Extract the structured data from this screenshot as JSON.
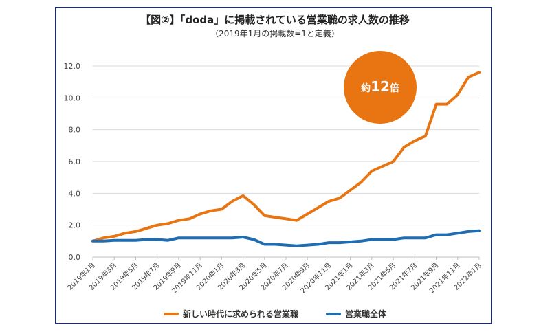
{
  "header": {
    "title": "【図②】「doda」に掲載されている営業職の求人数の推移",
    "subtitle": "（2019年1月の掲載数=1と定義）"
  },
  "badge": {
    "prefix": "約",
    "number": "12",
    "suffix": "倍",
    "color": "#e87511"
  },
  "chart_data": {
    "type": "line",
    "ylim": [
      0,
      12
    ],
    "yticks": [
      "0.0",
      "2.0",
      "4.0",
      "6.0",
      "8.0",
      "10.0",
      "12.0"
    ],
    "x": [
      "2019年1月",
      "2019年2月",
      "2019年3月",
      "2019年4月",
      "2019年5月",
      "2019年6月",
      "2019年7月",
      "2019年8月",
      "2019年9月",
      "2019年10月",
      "2019年11月",
      "2019年12月",
      "2020年1月",
      "2020年2月",
      "2020年3月",
      "2020年4月",
      "2020年5月",
      "2020年6月",
      "2020年7月",
      "2020年8月",
      "2020年9月",
      "2020年10月",
      "2020年11月",
      "2020年12月",
      "2021年1月",
      "2021年2月",
      "2021年3月",
      "2021年4月",
      "2021年5月",
      "2021年6月",
      "2021年7月",
      "2021年8月",
      "2021年9月",
      "2021年10月",
      "2021年11月",
      "2021年12月",
      "2022年1月"
    ],
    "xtick_labels": [
      "2019年1月",
      "2019年3月",
      "2019年5月",
      "2019年7月",
      "2019年9月",
      "2019年11月",
      "2020年1月",
      "2020年3月",
      "2020年5月",
      "2020年7月",
      "2020年9月",
      "2020年11月",
      "2021年1月",
      "2021年3月",
      "2021年5月",
      "2021年7月",
      "2021年9月",
      "2021年11月",
      "2022年1月"
    ],
    "series": [
      {
        "name": "新しい時代に求められる営業職",
        "color": "#e87511",
        "values": [
          1.0,
          1.2,
          1.3,
          1.5,
          1.6,
          1.8,
          2.0,
          2.1,
          2.3,
          2.4,
          2.7,
          2.9,
          3.0,
          3.5,
          3.85,
          3.3,
          2.6,
          2.5,
          2.4,
          2.3,
          2.7,
          3.1,
          3.5,
          3.7,
          4.2,
          4.7,
          5.4,
          5.7,
          6.0,
          6.9,
          7.3,
          7.6,
          9.6,
          9.6,
          10.2,
          11.3,
          11.6
        ]
      },
      {
        "name": "営業職全体",
        "color": "#1f6cb0",
        "values": [
          1.0,
          1.0,
          1.05,
          1.05,
          1.05,
          1.1,
          1.1,
          1.05,
          1.2,
          1.2,
          1.2,
          1.2,
          1.2,
          1.2,
          1.25,
          1.1,
          0.8,
          0.8,
          0.75,
          0.7,
          0.75,
          0.8,
          0.9,
          0.9,
          0.95,
          1.0,
          1.1,
          1.1,
          1.1,
          1.2,
          1.2,
          1.2,
          1.4,
          1.4,
          1.5,
          1.6,
          1.65
        ]
      }
    ],
    "grid": "horizontal",
    "legend_position": "bottom"
  }
}
